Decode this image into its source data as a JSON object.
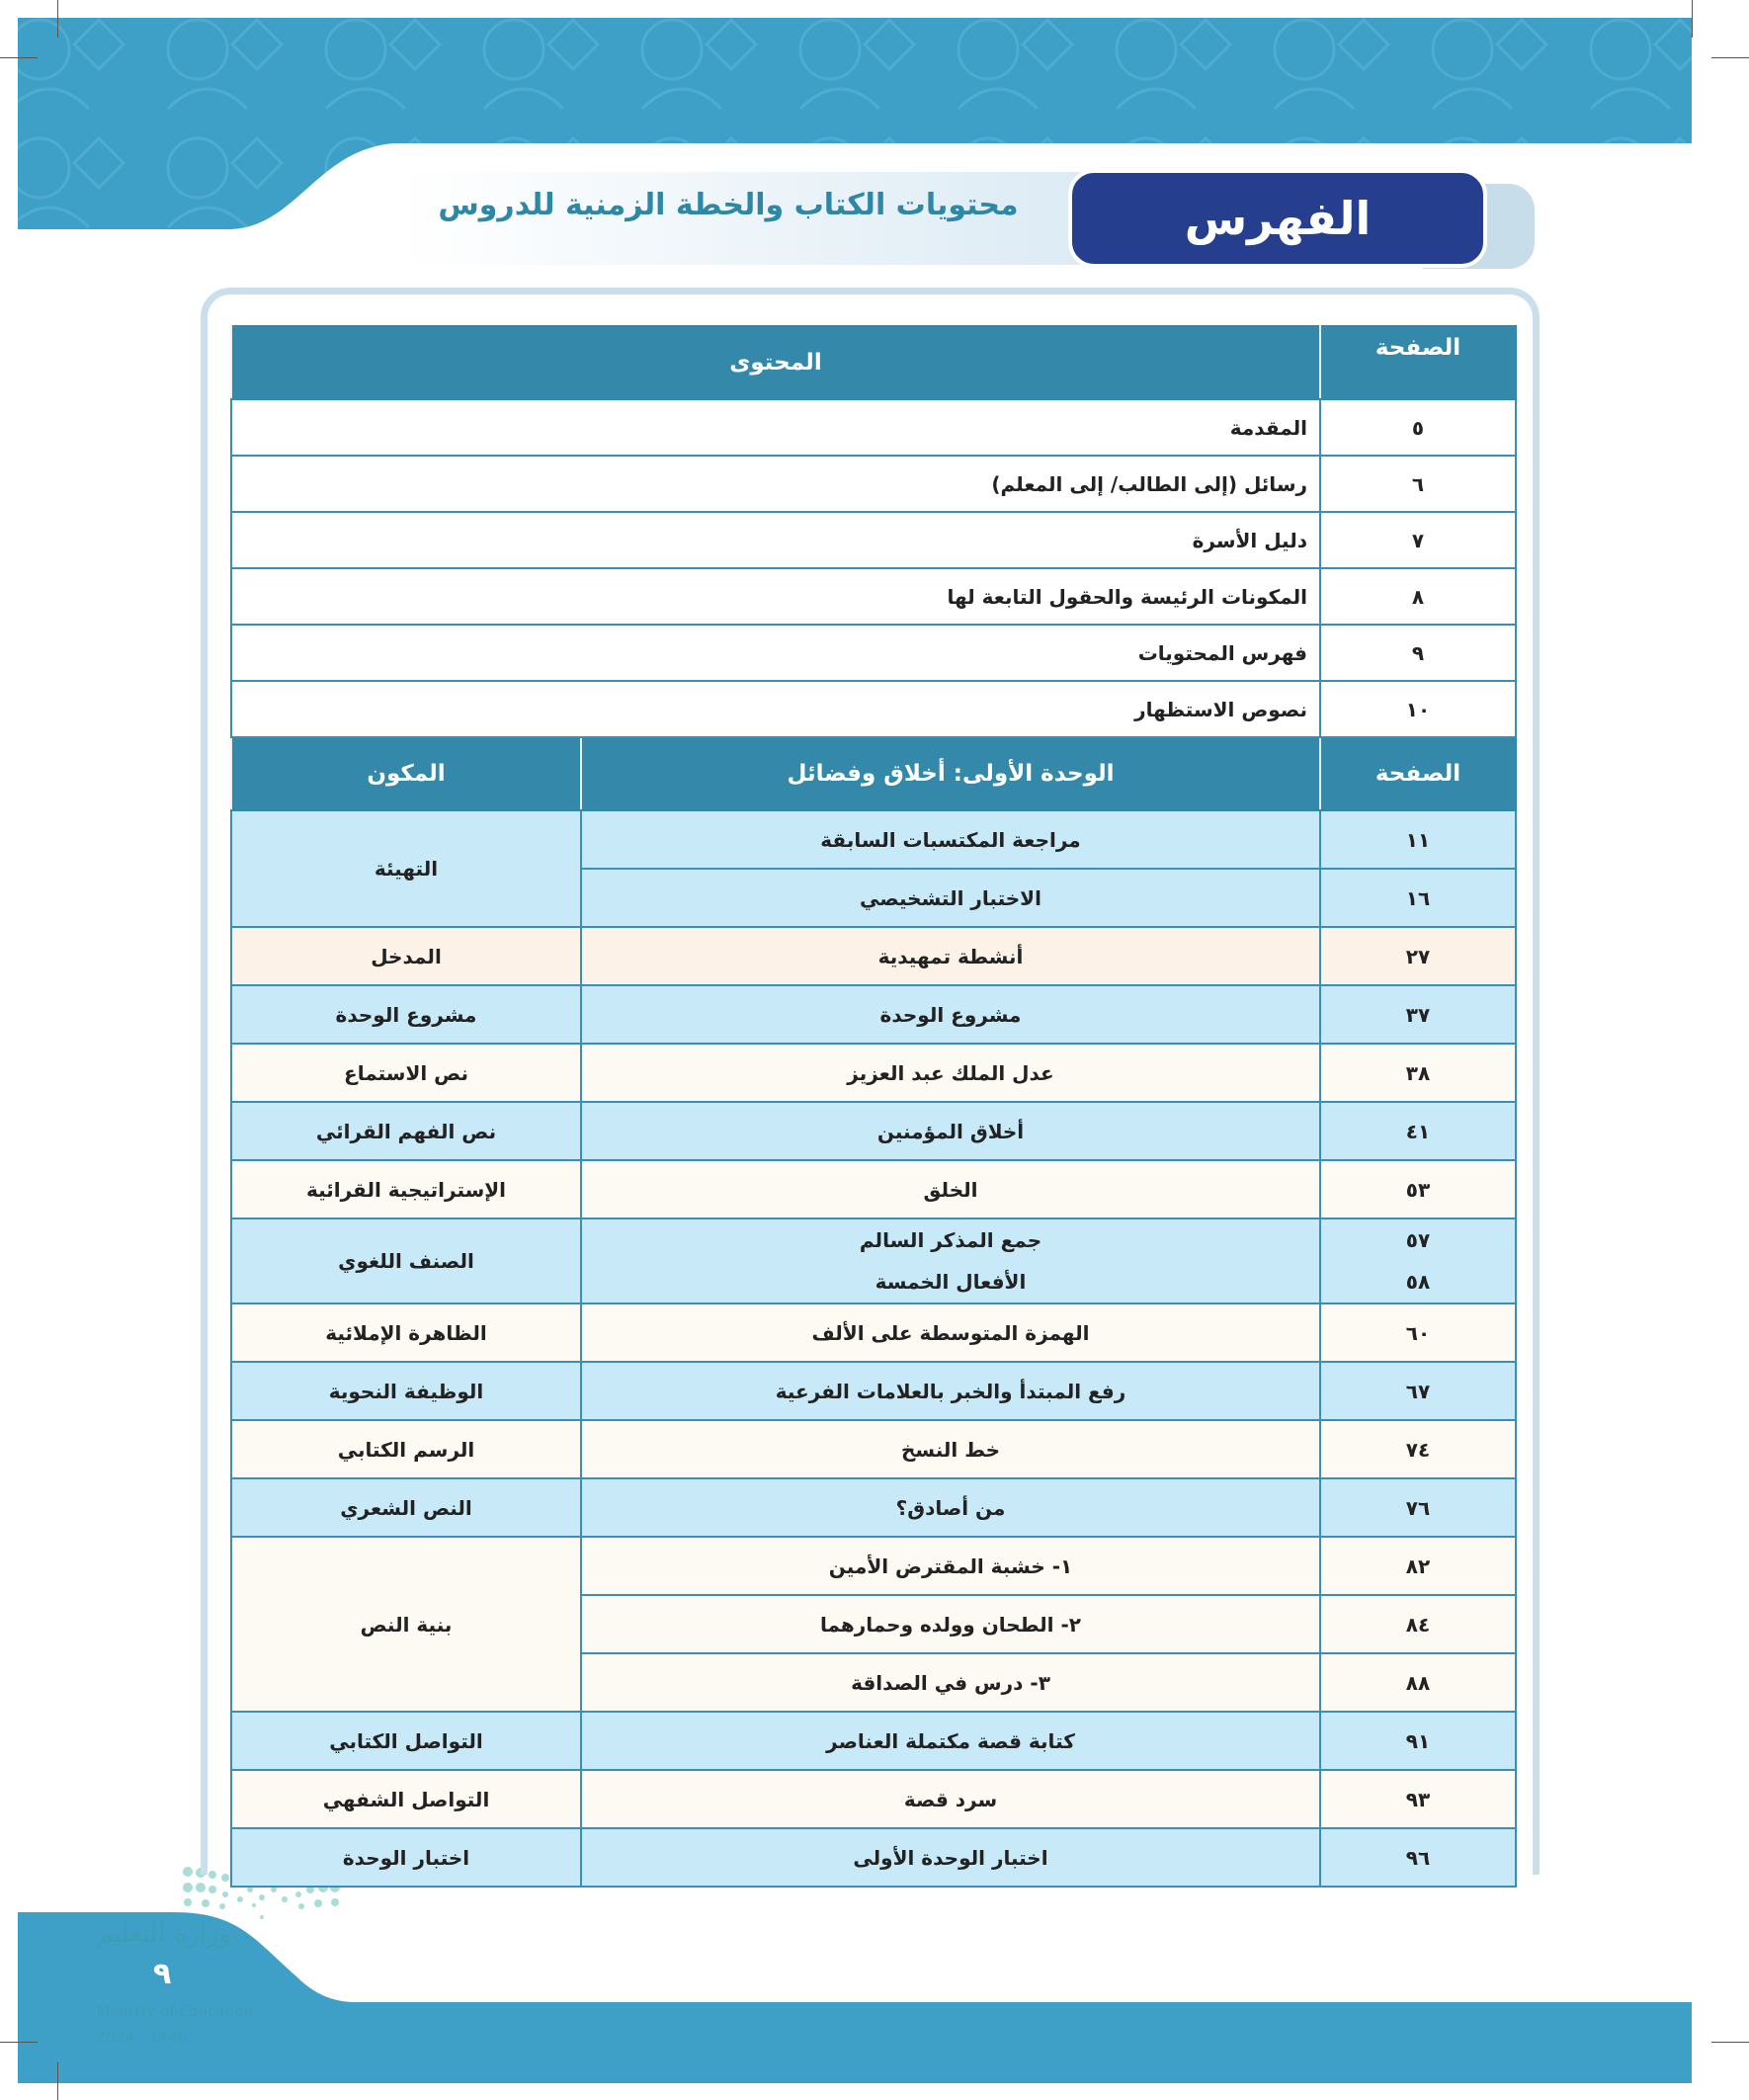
{
  "header": {
    "title": "الفهرس",
    "subtitle": "محتويات الكتاب والخطة الزمنية للدروس"
  },
  "colors": {
    "banner": "#3ea0c7",
    "title_bg": "#253f8e",
    "table_header": "#3489aa",
    "row_blue": "#c8e9f8",
    "row_cream": "#fdf9f3"
  },
  "intro_table": {
    "headers": {
      "content": "المحتوى",
      "page": "الصفحة"
    },
    "rows": [
      {
        "content": "المقدمة",
        "page": "٥"
      },
      {
        "content": "رسائل (إلى الطالب/ إلى المعلم)",
        "page": "٦"
      },
      {
        "content": "دليل الأسرة",
        "page": "٧"
      },
      {
        "content": "المكونات الرئيسة والحقول التابعة لها",
        "page": "٨"
      },
      {
        "content": "فهرس المحتويات",
        "page": "٩"
      },
      {
        "content": "نصوص الاستظهار",
        "page": "١٠"
      }
    ]
  },
  "unit_table": {
    "headers": {
      "component": "المكون",
      "unit": "الوحدة الأولى: أخلاق وفضائل",
      "page": "الصفحة"
    },
    "rows": [
      {
        "component": "التهيئة",
        "lessons": [
          {
            "title": "مراجعة المكتسبات السابقة",
            "page": "١١"
          },
          {
            "title": "الاختبار التشخيصي",
            "page": "١٦"
          }
        ]
      },
      {
        "component": "المدخل",
        "lessons": [
          {
            "title": "أنشطة تمهيدية",
            "page": "٢٧"
          }
        ]
      },
      {
        "component": "مشروع الوحدة",
        "lessons": [
          {
            "title": "مشروع الوحدة",
            "page": "٣٧"
          }
        ]
      },
      {
        "component": "نص الاستماع",
        "lessons": [
          {
            "title": "عدل الملك عبد العزيز",
            "page": "٣٨"
          }
        ]
      },
      {
        "component": "نص الفهم القرائي",
        "lessons": [
          {
            "title": "أخلاق المؤمنين",
            "page": "٤١"
          }
        ]
      },
      {
        "component": "الإستراتيجية القرائية",
        "lessons": [
          {
            "title": "الخلق",
            "page": "٥٣"
          }
        ]
      },
      {
        "component": "الصنف اللغوي",
        "lessons": [
          {
            "title": "جمع المذكر السالم",
            "page": "٥٧"
          },
          {
            "title": "الأفعال الخمسة",
            "page": "٥٨"
          }
        ]
      },
      {
        "component": "الظاهرة الإملائية",
        "lessons": [
          {
            "title": "الهمزة المتوسطة على الألف",
            "page": "٦٠"
          }
        ]
      },
      {
        "component": "الوظيفة النحوية",
        "lessons": [
          {
            "title": "رفع المبتدأ والخبر بالعلامات الفرعية",
            "page": "٦٧"
          }
        ]
      },
      {
        "component": "الرسم الكتابي",
        "lessons": [
          {
            "title": "خط النسخ",
            "page": "٧٤"
          }
        ]
      },
      {
        "component": "النص الشعري",
        "lessons": [
          {
            "title": "من أصادق؟",
            "page": "٧٦"
          }
        ]
      },
      {
        "component": "بنية النص",
        "lessons": [
          {
            "title": "١- خشبة المقترض الأمين",
            "page": "٨٢"
          },
          {
            "title": "٢- الطحان وولده وحمارهما",
            "page": "٨٤"
          },
          {
            "title": "٣- درس في الصداقة",
            "page": "٨٨"
          }
        ]
      },
      {
        "component": "التواصل الكتابي",
        "lessons": [
          {
            "title": "كتابة قصة مكتملة العناصر",
            "page": "٩١"
          }
        ]
      },
      {
        "component": "التواصل الشفهي",
        "lessons": [
          {
            "title": "سرد قصة",
            "page": "٩٣"
          }
        ]
      },
      {
        "component": "اختبار الوحدة",
        "lessons": [
          {
            "title": "اختبار الوحدة الأولى",
            "page": "٩٦"
          }
        ]
      }
    ]
  },
  "footer": {
    "page_number": "٩",
    "watermark_ar": "وزارة التعليم",
    "watermark_en": "Ministry of Education",
    "watermark_year": "2024 - 1446"
  }
}
